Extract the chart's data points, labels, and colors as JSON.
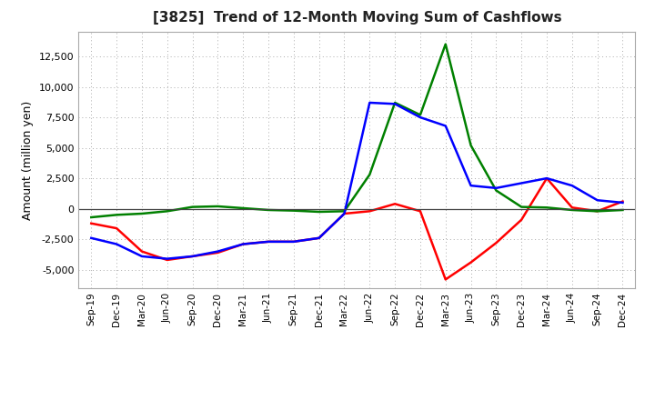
{
  "title": "[3825]  Trend of 12-Month Moving Sum of Cashflows",
  "ylabel": "Amount (million yen)",
  "x_labels": [
    "Sep-19",
    "Dec-19",
    "Mar-20",
    "Jun-20",
    "Sep-20",
    "Dec-20",
    "Mar-21",
    "Jun-21",
    "Sep-21",
    "Dec-21",
    "Mar-22",
    "Jun-22",
    "Sep-22",
    "Dec-22",
    "Mar-23",
    "Jun-23",
    "Sep-23",
    "Dec-23",
    "Mar-24",
    "Jun-24",
    "Sep-24",
    "Dec-24"
  ],
  "operating": [
    -1200,
    -1600,
    -3500,
    -4200,
    -3900,
    -3600,
    -2900,
    -2700,
    -2700,
    -2400,
    -400,
    -200,
    400,
    -200,
    -5800,
    -4400,
    -2800,
    -900,
    2500,
    100,
    -200,
    600
  ],
  "investing": [
    -700,
    -500,
    -400,
    -200,
    150,
    200,
    50,
    -100,
    -150,
    -250,
    -200,
    2800,
    8700,
    7700,
    13500,
    5200,
    1500,
    150,
    100,
    -100,
    -200,
    -100
  ],
  "free": [
    -2400,
    -2900,
    -3900,
    -4100,
    -3900,
    -3500,
    -2900,
    -2700,
    -2700,
    -2400,
    -400,
    8700,
    8600,
    7500,
    6800,
    1900,
    1700,
    2100,
    2500,
    1900,
    700,
    500
  ],
  "ylim": [
    -6500,
    14500
  ],
  "yticks": [
    -5000,
    -2500,
    0,
    2500,
    5000,
    7500,
    10000,
    12500
  ],
  "operating_color": "#FF0000",
  "investing_color": "#008000",
  "free_color": "#0000FF",
  "background_color": "#FFFFFF",
  "plot_bg_color": "#FFFFFF",
  "grid_color": "#AAAAAA"
}
